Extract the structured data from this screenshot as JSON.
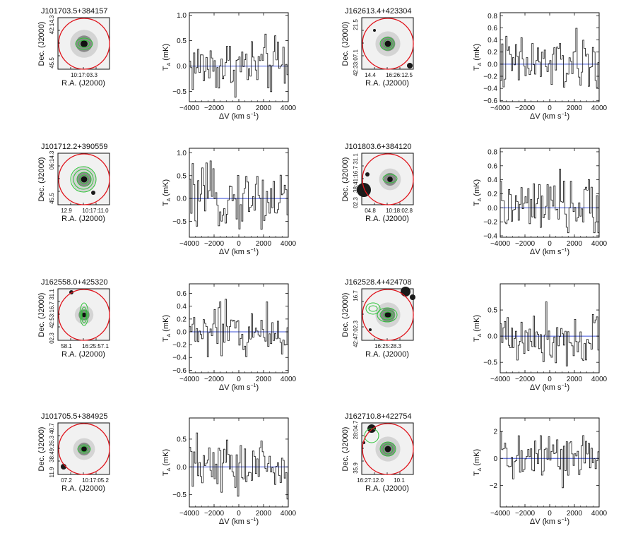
{
  "figure": {
    "colors": {
      "aperture": "#e0141c",
      "contour": "#2fc43a",
      "baseline": "#3a4fd6",
      "spectrum": "#111111"
    },
    "axis_labels": {
      "ra": "R.A. (J2000)",
      "dec": "Dec. (J2000)",
      "dv": "ΔV (km s",
      "dv_exp": "−1",
      "dv_close": ")",
      "ta": "T",
      "ta_sub": "A",
      "ta_unit": " (mK)"
    },
    "spectrum_xticks": [
      "−4000",
      "−2000",
      "0",
      "2000",
      "4000"
    ]
  },
  "panels": [
    {
      "title": "J101703.5+384157",
      "image": {
        "ra_ticks": [
          "10:17:03.3"
        ],
        "dec_ticks": [
          "42:14.3",
          "45.5"
        ]
      },
      "chart_data": {
        "type": "line",
        "step": true,
        "xlabel": "ΔV (km s−1)",
        "ylabel": "T*A (mK)",
        "xlim": [
          -4000,
          4000
        ],
        "ylim": [
          -0.7,
          1.05
        ],
        "yticks": [
          -0.5,
          0.0,
          0.5,
          1.0
        ],
        "ytick_labels": [
          "−0.5",
          "0.0",
          "0.5",
          "1.0"
        ]
      }
    },
    {
      "title": "J162613.4+423304",
      "image": {
        "ra_ticks": [
          "14.4",
          "16:26:12.5"
        ],
        "dec_ticks": [
          "21.5",
          "42:33:07.1"
        ]
      },
      "chart_data": {
        "type": "line",
        "step": true,
        "xlabel": "ΔV (km s−1)",
        "ylabel": "T*A (mK)",
        "xlim": [
          -4000,
          4000
        ],
        "ylim": [
          -0.62,
          0.85
        ],
        "yticks": [
          -0.6,
          -0.4,
          -0.2,
          0.0,
          0.2,
          0.4,
          0.6,
          0.8
        ],
        "ytick_labels": [
          "−0.6",
          "−0.4",
          "−0.2",
          "0.0",
          "0.2",
          "0.4",
          "0.6",
          "0.8"
        ]
      }
    },
    {
      "title": "J101712.2+390559",
      "image": {
        "ra_ticks": [
          "12.9",
          "10:17:11.0"
        ],
        "dec_ticks": [
          "06:14.3",
          "45.5"
        ]
      },
      "chart_data": {
        "type": "line",
        "step": true,
        "xlabel": "ΔV (km s−1)",
        "ylabel": "T*A (mK)",
        "xlim": [
          -4000,
          4000
        ],
        "ylim": [
          -0.85,
          1.1
        ],
        "yticks": [
          -0.5,
          0.0,
          0.5,
          1.0
        ],
        "ytick_labels": [
          "−0.5",
          "0.0",
          "0.5",
          "1.0"
        ]
      }
    },
    {
      "title": "J101803.6+384120",
      "image": {
        "ra_ticks": [
          "04.8",
          "10:18:02.8"
        ],
        "dec_ticks": [
          "31.1",
          "38:41:16.7",
          "02.3"
        ]
      },
      "chart_data": {
        "type": "line",
        "step": true,
        "xlabel": "ΔV (km s−1)",
        "ylabel": "T*A (mK)",
        "xlim": [
          -4000,
          4000
        ],
        "ylim": [
          -0.42,
          0.85
        ],
        "yticks": [
          -0.4,
          -0.2,
          0.0,
          0.2,
          0.4,
          0.6,
          0.8
        ],
        "ytick_labels": [
          "−0.4",
          "−0.2",
          "0.0",
          "0.2",
          "0.4",
          "0.6",
          "0.8"
        ]
      }
    },
    {
      "title": "J162558.0+425320",
      "image": {
        "ra_ticks": [
          "58.1",
          "16:25:57.1"
        ],
        "dec_ticks": [
          "31.1",
          "42:53:16.7",
          "02.3"
        ]
      },
      "chart_data": {
        "type": "line",
        "step": true,
        "xlabel": "ΔV (km s−1)",
        "ylabel": "T*A (mK)",
        "xlim": [
          -4000,
          4000
        ],
        "ylim": [
          -0.64,
          0.75
        ],
        "yticks": [
          -0.6,
          -0.4,
          -0.2,
          0.0,
          0.2,
          0.4,
          0.6
        ],
        "ytick_labels": [
          "−0.6",
          "−0.4",
          "−0.2",
          "0.0",
          "0.2",
          "0.4",
          "0.6"
        ]
      }
    },
    {
      "title": "J162528.4+424708",
      "image": {
        "ra_ticks": [
          "16:25:28.3"
        ],
        "dec_ticks": [
          "16.7",
          "42:47:02.3"
        ]
      },
      "chart_data": {
        "type": "line",
        "step": true,
        "xlabel": "ΔV (km s−1)",
        "ylabel": "T*A (mK)",
        "xlim": [
          -4000,
          4000
        ],
        "ylim": [
          -0.7,
          1.0
        ],
        "yticks": [
          -0.5,
          0.0,
          0.5
        ],
        "ytick_labels": [
          "−0.5",
          "0.0",
          "0.5"
        ]
      }
    },
    {
      "title": "J101705.5+384925",
      "image": {
        "ra_ticks": [
          "07.2",
          "10:17:05.2"
        ],
        "dec_ticks": [
          "40.7",
          "38:49:26.3",
          "11.9"
        ]
      },
      "chart_data": {
        "type": "line",
        "step": true,
        "xlabel": "ΔV (km s−1)",
        "ylabel": "T*A (mK)",
        "xlim": [
          -4000,
          4000
        ],
        "ylim": [
          -0.72,
          0.88
        ],
        "yticks": [
          -0.5,
          0.0,
          0.5
        ],
        "ytick_labels": [
          "−0.5",
          "0.0",
          "0.5"
        ]
      }
    },
    {
      "title": "J162710.8+422754",
      "image": {
        "ra_ticks": [
          "16:27:12.0",
          "10.1"
        ],
        "dec_ticks": [
          "28:04.7",
          "35.9"
        ]
      },
      "chart_data": {
        "type": "line",
        "step": true,
        "xlabel": "ΔV (km s−1)",
        "ylabel": "T*A (mK)",
        "xlim": [
          -4000,
          4000
        ],
        "ylim": [
          -3.6,
          3.0
        ],
        "yticks": [
          -2,
          0,
          2
        ],
        "ytick_labels": [
          "−2",
          "0",
          "2"
        ]
      }
    }
  ]
}
